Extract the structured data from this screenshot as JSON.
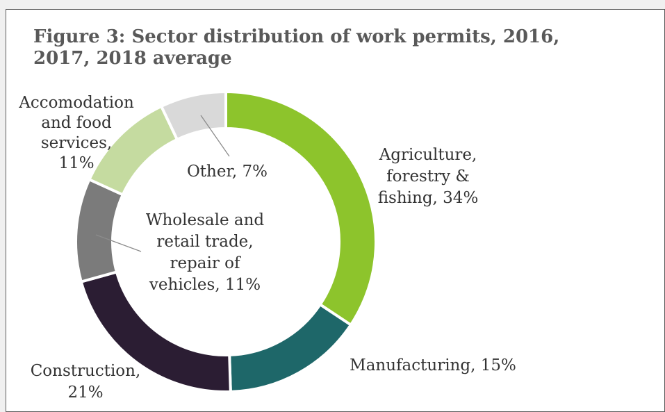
{
  "chart_data": {
    "type": "pie",
    "variant": "donut",
    "title": "Figure 3: Sector distribution of work permits, 2016, 2017, 2018 average",
    "unit": "%",
    "slices": [
      {
        "key": "agriculture",
        "label_lines": [
          "Agriculture,",
          "forestry &",
          "fishing, 34%"
        ],
        "value": 34,
        "color": "#8dc42c"
      },
      {
        "key": "manufacturing",
        "label_lines": [
          "Manufacturing, 15%"
        ],
        "value": 15,
        "color": "#1e6769"
      },
      {
        "key": "construction",
        "label_lines": [
          "Construction,",
          "21%"
        ],
        "value": 21,
        "color": "#2b1d33"
      },
      {
        "key": "wholesale",
        "label_lines": [
          "Wholesale and",
          "retail trade,",
          "repair of",
          "vehicles, 11%"
        ],
        "value": 11,
        "color": "#7b7b7b"
      },
      {
        "key": "accommodation",
        "label_lines": [
          "Accomodation",
          "and food",
          "services,",
          "11%"
        ],
        "value": 11,
        "color": "#c5dba0"
      },
      {
        "key": "other",
        "label_lines": [
          "Other, 7%"
        ],
        "value": 7,
        "color": "#d9d9d9"
      }
    ],
    "legend": "none"
  }
}
